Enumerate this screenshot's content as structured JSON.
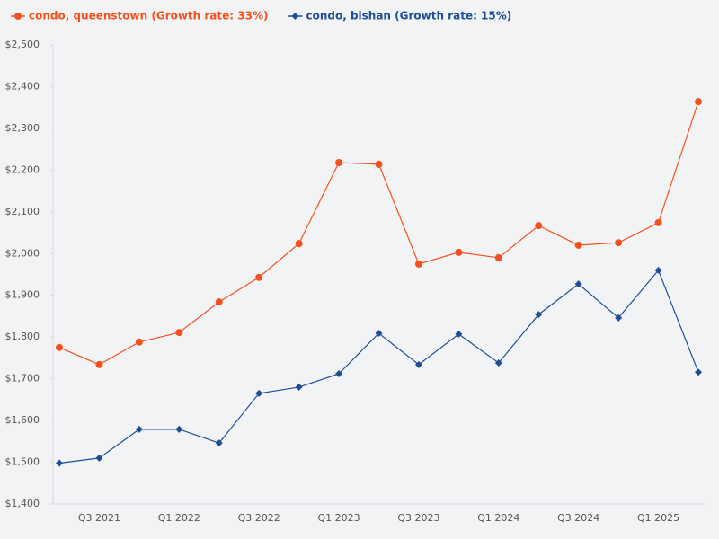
{
  "chart_data": {
    "type": "line",
    "categories": [
      null,
      "Q3 2021",
      null,
      "Q1 2022",
      null,
      "Q3 2022",
      null,
      "Q1 2023",
      null,
      "Q3 2023",
      null,
      "Q1 2024",
      null,
      "Q3 2024",
      null,
      "Q1 2025",
      null
    ],
    "series": [
      {
        "name": "condo, queenstown (Growth rate: 33%)",
        "color": "#f4511e",
        "marker": "circle",
        "values": [
          1775,
          1734,
          1788,
          1811,
          1884,
          1943,
          2024,
          2218,
          2214,
          1975,
          2003,
          1990,
          2067,
          2020,
          2026,
          2074,
          2364
        ]
      },
      {
        "name": "condo, bishan (Growth rate: 15%)",
        "color": "#1f4e96",
        "marker": "diamond",
        "values": [
          1498,
          1510,
          1579,
          1579,
          1546,
          1665,
          1680,
          1712,
          1809,
          1734,
          1807,
          1738,
          1854,
          1927,
          1846,
          1960,
          1716
        ]
      }
    ],
    "ylim": [
      1400,
      2500
    ],
    "yticks": [
      {
        "value": 1400,
        "label": "$1,400"
      },
      {
        "value": 1500,
        "label": "$1,500"
      },
      {
        "value": 1600,
        "label": "$1,600"
      },
      {
        "value": 1700,
        "label": "$1,700"
      },
      {
        "value": 1800,
        "label": "$1,800"
      },
      {
        "value": 1900,
        "label": "$1,900"
      },
      {
        "value": 2000,
        "label": "$2,000"
      },
      {
        "value": 2100,
        "label": "$2,100"
      },
      {
        "value": 2200,
        "label": "$2,200"
      },
      {
        "value": 2300,
        "label": "$2,300"
      },
      {
        "value": 2400,
        "label": "$2,400"
      },
      {
        "value": 2500,
        "label": "$2,500"
      }
    ],
    "grid": false,
    "legend": "top-left"
  }
}
